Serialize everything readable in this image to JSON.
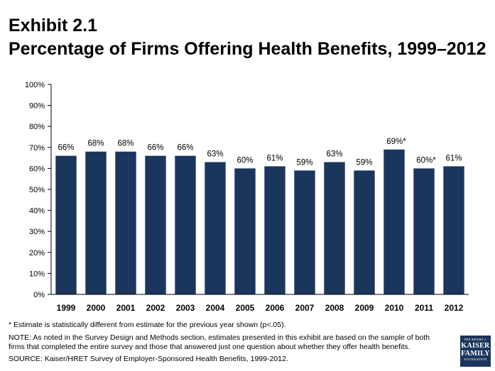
{
  "header": {
    "exhibit": "Exhibit 2.1",
    "title": "Percentage of Firms Offering Health Benefits, 1999–2012"
  },
  "chart_data": {
    "type": "bar",
    "categories": [
      "1999",
      "2000",
      "2001",
      "2002",
      "2003",
      "2004",
      "2005",
      "2006",
      "2007",
      "2008",
      "2009",
      "2010",
      "2011",
      "2012"
    ],
    "values": [
      66,
      68,
      68,
      66,
      66,
      63,
      60,
      61,
      59,
      63,
      59,
      69,
      60,
      61
    ],
    "data_labels": [
      "66%",
      "68%",
      "68%",
      "66%",
      "66%",
      "63%",
      "60%",
      "61%",
      "59%",
      "63%",
      "59%",
      "69%*",
      "60%*",
      "61%"
    ],
    "yticks": [
      "0%",
      "10%",
      "20%",
      "30%",
      "40%",
      "50%",
      "60%",
      "70%",
      "80%",
      "90%",
      "100%"
    ],
    "ylim": [
      0,
      100
    ],
    "bar_color": "#1b365d",
    "grid": false,
    "legend": "none"
  },
  "footnotes": {
    "estimate": "* Estimate is statistically different from estimate for the previous year shown (p<.05).",
    "note": "NOTE: As noted in the Survey Design and Methods section, estimates presented in this exhibit are based on the sample of both firms that completed the entire survey and those that answered just one question about whether they offer health benefits.",
    "source": "SOURCE: Kaiser/HRET Survey of Employer-Sponsored Health Benefits, 1999-2012."
  },
  "logo": {
    "line1": "THE HENRY J.",
    "line2": "KAISER",
    "line3": "FAMILY",
    "line4": "FOUNDATION"
  }
}
